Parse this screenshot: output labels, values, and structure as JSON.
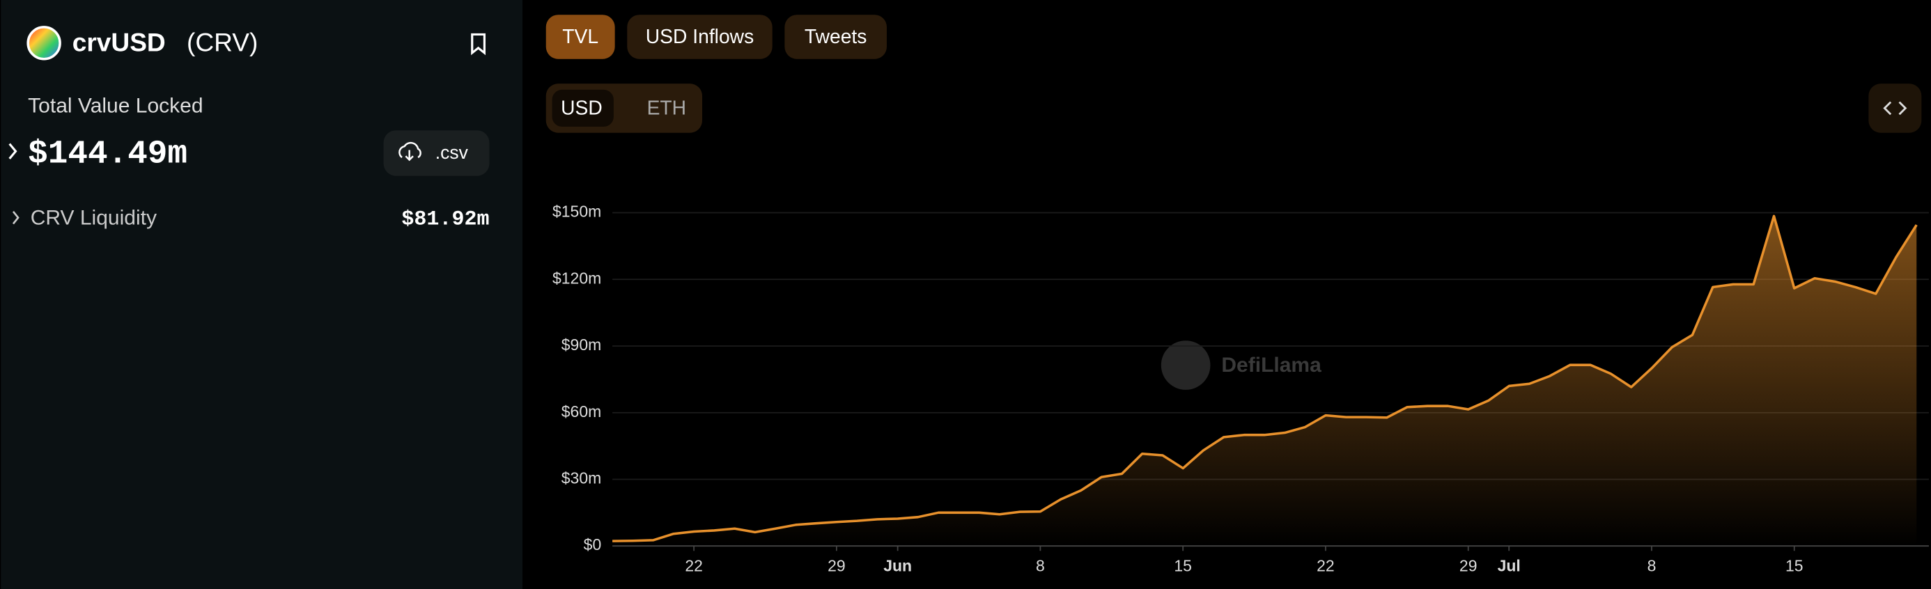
{
  "header": {
    "name": "crvUSD",
    "symbol": "(CRV)",
    "metric_label": "Total Value Locked",
    "metric_value": "$144.49m",
    "csv_button": ".csv",
    "breakdown": {
      "label": "CRV Liquidity",
      "value": "$81.92m"
    }
  },
  "tabs": [
    "TVL",
    "USD Inflows",
    "Tweets"
  ],
  "currency_toggle": [
    "USD",
    "ETH"
  ],
  "chart_data": {
    "type": "area",
    "watermark": "DefiLlama",
    "color": "#e8912c",
    "x": [
      "May 18",
      "May 19",
      "May 20",
      "May 21",
      "May 22",
      "May 23",
      "May 24",
      "May 25",
      "May 26",
      "May 27",
      "May 28",
      "May 29",
      "May 30",
      "May 31",
      "Jun 1",
      "Jun 2",
      "Jun 3",
      "Jun 4",
      "Jun 5",
      "Jun 6",
      "Jun 7",
      "Jun 8",
      "Jun 9",
      "Jun 10",
      "Jun 11",
      "Jun 12",
      "Jun 13",
      "Jun 14",
      "Jun 15",
      "Jun 16",
      "Jun 17",
      "Jun 18",
      "Jun 19",
      "Jun 20",
      "Jun 21",
      "Jun 22",
      "Jun 23",
      "Jun 24",
      "Jun 25",
      "Jun 26",
      "Jun 27",
      "Jun 28",
      "Jun 29",
      "Jun 30",
      "Jul 1",
      "Jul 2",
      "Jul 3",
      "Jul 4",
      "Jul 5",
      "Jul 6",
      "Jul 7",
      "Jul 8",
      "Jul 9",
      "Jul 10",
      "Jul 11",
      "Jul 12",
      "Jul 13",
      "Jul 14",
      "Jul 15",
      "Jul 16",
      "Jul 17",
      "Jul 18",
      "Jul 19",
      "Jul 20",
      "Jul 21"
    ],
    "series": [
      {
        "name": "TVL",
        "color": "#e8912c",
        "values": [
          2.2,
          2.3,
          2.6,
          5.5,
          6.5,
          7,
          7.8,
          6.2,
          7.8,
          9.5,
          10.2,
          10.8,
          11.3,
          12,
          12.3,
          13,
          15,
          15,
          15,
          14.2,
          15.4,
          15.5,
          21,
          25,
          31,
          32.5,
          41.5,
          40.8,
          35,
          43,
          49,
          50,
          50,
          51,
          53.5,
          58.8,
          58,
          58,
          57.8,
          62.5,
          63,
          63,
          61.5,
          65.5,
          72,
          73,
          76.5,
          81.5,
          81.5,
          77.5,
          71.5,
          80,
          89.5,
          95,
          116.5,
          117.8,
          117.8,
          148.5,
          116,
          120.5,
          119,
          116.5,
          113.5,
          130,
          144.5
        ]
      }
    ],
    "xticks": [
      {
        "value": "May 22",
        "label": "22"
      },
      {
        "value": "May 29",
        "label": "29"
      },
      {
        "value": "Jun 1",
        "label": "Jun"
      },
      {
        "value": "Jun 8",
        "label": "8"
      },
      {
        "value": "Jun 15",
        "label": "15"
      },
      {
        "value": "Jun 22",
        "label": "22"
      },
      {
        "value": "Jun 29",
        "label": "29"
      },
      {
        "value": "Jul 1",
        "label": "Jul"
      },
      {
        "value": "Jul 8",
        "label": "8"
      },
      {
        "value": "Jul 15",
        "label": "15"
      }
    ],
    "ylim": [
      0,
      150
    ],
    "yticks": [
      {
        "value": 0,
        "label": "$0"
      },
      {
        "value": 30,
        "label": "$30m"
      },
      {
        "value": 60,
        "label": "$60m"
      },
      {
        "value": 90,
        "label": "$90m"
      },
      {
        "value": 120,
        "label": "$120m"
      },
      {
        "value": 150,
        "label": "$150m"
      }
    ],
    "grid": true
  }
}
